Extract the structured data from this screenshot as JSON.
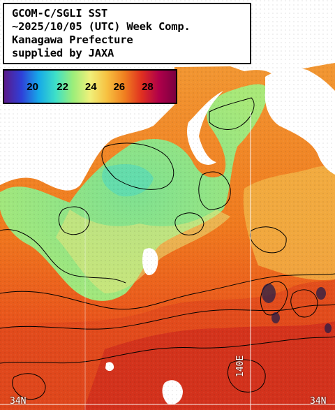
{
  "title": {
    "line1": "GCOM-C/SGLI SST",
    "line2": "~2025/10/05 (UTC) Week Comp.",
    "line3": "Kanagawa Prefecture",
    "line4": "supplied by JAXA"
  },
  "color_scale": {
    "ticks": [
      "20",
      "22",
      "24",
      "26",
      "28"
    ],
    "colors": [
      "#5a1a8a",
      "#2f3fd8",
      "#16a8e8",
      "#3ee0c8",
      "#9bee7a",
      "#f0f07a",
      "#f7c040",
      "#f08020",
      "#e03020",
      "#b0004a",
      "#7a0040"
    ]
  },
  "map": {
    "lat_label": "34N",
    "lat_label_right": "34N",
    "lon_label": "140E",
    "land_color": "#ffffff",
    "contour_color": "#000000",
    "grid_color": "#ffffff"
  }
}
